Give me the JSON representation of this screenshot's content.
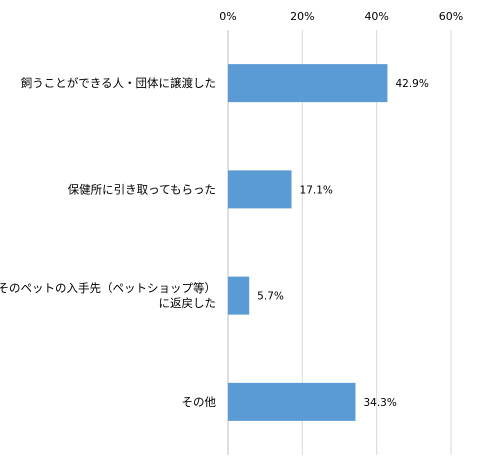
{
  "chart_data": {
    "type": "bar",
    "orientation": "horizontal",
    "categories": [
      [
        "飼うことができる人・団体に譲渡した"
      ],
      [
        "保健所に引き取ってもらった"
      ],
      [
        "そのペットの入手先（ペットショップ等）",
        "に返戻した"
      ],
      [
        "その他"
      ]
    ],
    "values": [
      42.9,
      17.1,
      5.7,
      34.3
    ],
    "data_labels": [
      "42.9%",
      "17.1%",
      "5.7%",
      "34.3%"
    ],
    "x_ticks": [
      0,
      20,
      40,
      60
    ],
    "x_tick_labels": [
      "0%",
      "20%",
      "40%",
      "60%"
    ],
    "xlim": [
      0,
      60
    ],
    "axis_position": "top",
    "grid": true,
    "colors": {
      "bar": "#5b9bd5",
      "grid": "#d9d9d9"
    }
  }
}
